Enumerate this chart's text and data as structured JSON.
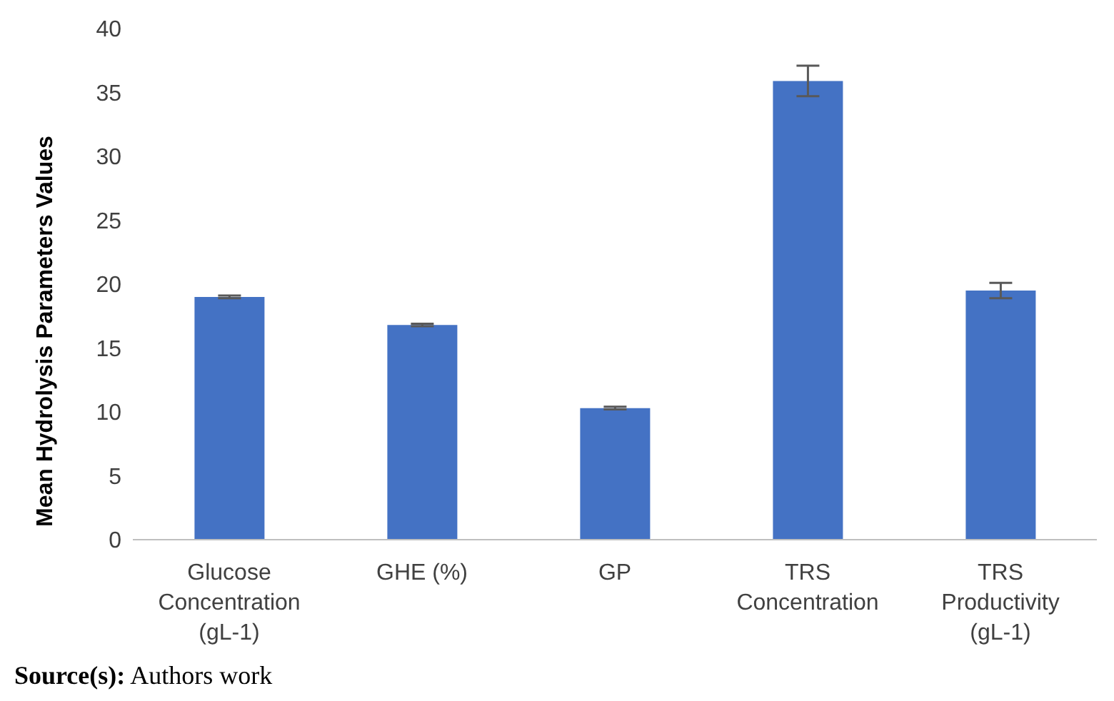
{
  "chart_data": {
    "type": "bar",
    "ylabel": "Mean Hydrolysis Parameters Values",
    "categories": [
      "Glucose Concentration (gL-1)",
      "GHE (%)",
      "GP",
      "TRS Concentration",
      "TRS Productivity (gL-1)"
    ],
    "values": [
      19.0,
      16.8,
      10.3,
      35.9,
      19.5
    ],
    "errors": [
      0.1,
      0.1,
      0.1,
      1.2,
      0.6
    ],
    "color": "#4472c4",
    "ylim": [
      0,
      40
    ],
    "yticks": [
      0,
      5,
      10,
      15,
      20,
      25,
      30,
      35,
      40
    ],
    "grid": false,
    "legend": false,
    "annotations": [
      "Source(s): Authors work"
    ]
  }
}
